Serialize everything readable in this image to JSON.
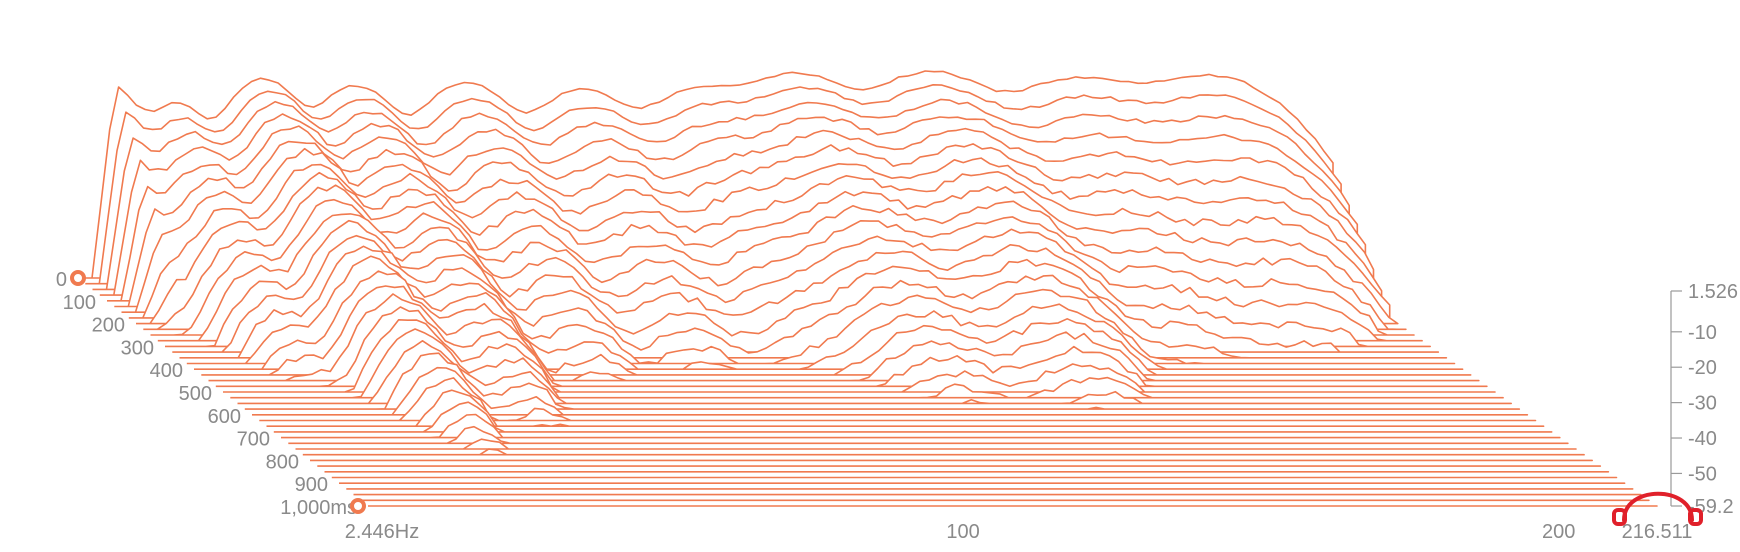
{
  "chart_data": {
    "type": "waterfall",
    "title": "",
    "x_axis": {
      "scale": "linear",
      "range": [
        2.446,
        216.511
      ],
      "tick_labels": [
        "2.446Hz",
        "100",
        "200",
        "216.511"
      ],
      "tick_values": [
        2.446,
        100,
        200,
        216.511
      ]
    },
    "z_axis": {
      "range": [
        -59.2,
        1.526
      ],
      "tick_labels": [
        "1.526",
        "-10",
        "-20",
        "-30",
        "-40",
        "-50",
        "-59.2"
      ],
      "tick_values": [
        1.526,
        -10,
        -20,
        -30,
        -40,
        -50,
        -59.2
      ]
    },
    "time_axis": {
      "range": [
        0,
        1000
      ],
      "tick_labels": [
        "0",
        "100",
        "200",
        "300",
        "400",
        "500",
        "600",
        "700",
        "800",
        "900",
        "1,000ms"
      ],
      "tick_values": [
        0,
        100,
        200,
        300,
        400,
        500,
        600,
        700,
        800,
        900,
        1000
      ]
    },
    "slice_count": 41,
    "modes": [
      {
        "freq": 5,
        "level": -4,
        "decay_ms": 120
      },
      {
        "freq": 17,
        "level": -10,
        "decay_ms": 260
      },
      {
        "freq": 32,
        "level": -3,
        "decay_ms": 380
      },
      {
        "freq": 48,
        "level": -5,
        "decay_ms": 330
      },
      {
        "freq": 67,
        "level": -4,
        "decay_ms": 230
      },
      {
        "freq": 87,
        "level": -6,
        "decay_ms": 210
      },
      {
        "freq": 107,
        "level": -6,
        "decay_ms": 200
      },
      {
        "freq": 124,
        "level": -1.5,
        "decay_ms": 260
      },
      {
        "freq": 147,
        "level": -1,
        "decay_ms": 270
      },
      {
        "freq": 172,
        "level": -3,
        "decay_ms": 180
      },
      {
        "freq": 195,
        "level": -2,
        "decay_ms": 160
      }
    ],
    "floor_db": -59.2,
    "color": "#f07a4f"
  },
  "logo": {
    "name": "headphones-logo",
    "color": "#e0202a"
  }
}
